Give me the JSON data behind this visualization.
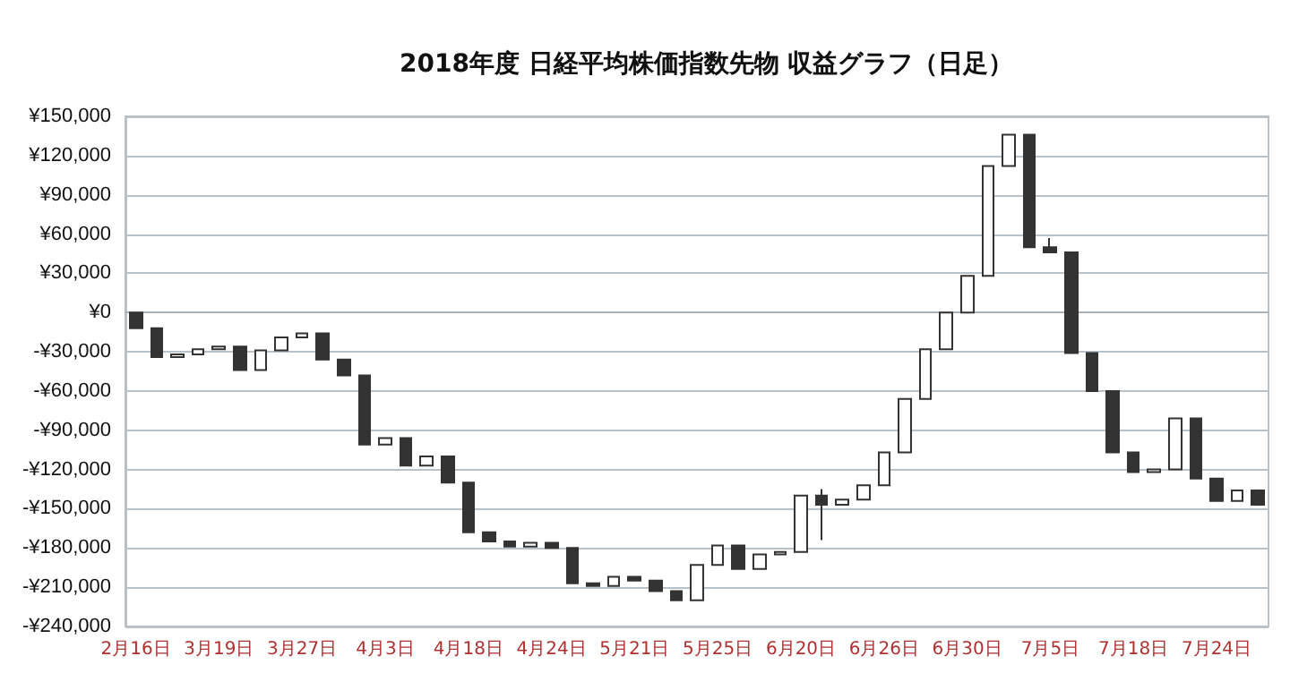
{
  "chart_data": {
    "type": "candlestick",
    "title": "2018年度 日経平均株価指数先物 収益グラフ（日足）",
    "categories": [
      "2月16日",
      null,
      null,
      null,
      "3月19日",
      null,
      null,
      null,
      "3月27日",
      null,
      null,
      null,
      "4月3日",
      null,
      null,
      null,
      "4月18日",
      null,
      null,
      null,
      "4月24日",
      null,
      null,
      null,
      "5月21日",
      null,
      null,
      null,
      "5月25日",
      null,
      null,
      null,
      "6月20日",
      null,
      null,
      null,
      "6月26日",
      null,
      null,
      null,
      "6月30日",
      null,
      null,
      null,
      "7月5日",
      null,
      null,
      null,
      "7月18日",
      null,
      null,
      null,
      "7月24日",
      null,
      null
    ],
    "ohlc": [
      [
        0,
        0,
        -12000,
        -12000
      ],
      [
        -12000,
        -12000,
        -34000,
        -34000
      ],
      [
        -34000,
        -32000,
        -34000,
        -32000
      ],
      [
        -32000,
        -28000,
        -32000,
        -28000
      ],
      [
        -28000,
        -26000,
        -28000,
        -26000
      ],
      [
        -26000,
        -26000,
        -44000,
        -44000
      ],
      [
        -44000,
        -29000,
        -44000,
        -29000
      ],
      [
        -29000,
        -19000,
        -29000,
        -19000
      ],
      [
        -19000,
        -16000,
        -19000,
        -16000
      ],
      [
        -16000,
        -16000,
        -36000,
        -36000
      ],
      [
        -36000,
        -36000,
        -48000,
        -48000
      ],
      [
        -48000,
        -48000,
        -101000,
        -101000
      ],
      [
        -101000,
        -96000,
        -101000,
        -96000
      ],
      [
        -96000,
        -96000,
        -117000,
        -117000
      ],
      [
        -117000,
        -110000,
        -117000,
        -110000
      ],
      [
        -110000,
        -110000,
        -130000,
        -130000
      ],
      [
        -130000,
        -130000,
        -168000,
        -168000
      ],
      [
        -168000,
        -168000,
        -175000,
        -175000
      ],
      [
        -175000,
        -175000,
        -179000,
        -179000
      ],
      [
        -179000,
        -176000,
        -179000,
        -176000
      ],
      [
        -176000,
        -176000,
        -180000,
        -180000
      ],
      [
        -180000,
        -180000,
        -207000,
        -207000
      ],
      [
        -207000,
        -207000,
        -209000,
        -209000
      ],
      [
        -209000,
        -202000,
        -209000,
        -202000
      ],
      [
        -202000,
        -202000,
        -205000,
        -205000
      ],
      [
        -205000,
        -205000,
        -213000,
        -213000
      ],
      [
        -213000,
        -213000,
        -220000,
        -220000
      ],
      [
        -220000,
        -193000,
        -220000,
        -193000
      ],
      [
        -193000,
        -178000,
        -193000,
        -178000
      ],
      [
        -178000,
        -178000,
        -196000,
        -196000
      ],
      [
        -196000,
        -185000,
        -196000,
        -185000
      ],
      [
        -185000,
        -183000,
        -185000,
        -183000
      ],
      [
        -183000,
        -140000,
        -183000,
        -140000
      ],
      [
        -140000,
        -135000,
        -174000,
        -147000
      ],
      [
        -147000,
        -143000,
        -147000,
        -143000
      ],
      [
        -143000,
        -132000,
        -143000,
        -132000
      ],
      [
        -132000,
        -107000,
        -132000,
        -107000
      ],
      [
        -107000,
        -66000,
        -107000,
        -66000
      ],
      [
        -66000,
        -28000,
        -66000,
        -28000
      ],
      [
        -28000,
        0,
        -28000,
        0
      ],
      [
        0,
        28000,
        0,
        28000
      ],
      [
        28000,
        112000,
        28000,
        112000
      ],
      [
        112000,
        136000,
        112000,
        136000
      ],
      [
        136000,
        136000,
        50000,
        50000
      ],
      [
        50000,
        57000,
        46000,
        46000
      ],
      [
        46000,
        46000,
        -31000,
        -31000
      ],
      [
        -31000,
        -31000,
        -60000,
        -60000
      ],
      [
        -60000,
        -60000,
        -107000,
        -107000
      ],
      [
        -107000,
        -107000,
        -122000,
        -122000
      ],
      [
        -122000,
        -120000,
        -122000,
        -120000
      ],
      [
        -120000,
        -81000,
        -120000,
        -81000
      ],
      [
        -81000,
        -81000,
        -127000,
        -127000
      ],
      [
        -127000,
        -127000,
        -144000,
        -144000
      ],
      [
        -144000,
        -136000,
        -144000,
        -136000
      ],
      [
        -136000,
        -136000,
        -147000,
        -147000
      ]
    ],
    "color": "#333333",
    "ylim": [
      -240000,
      150000
    ],
    "yticks": [
      {
        "value": -240000,
        "label": "-¥240,000"
      },
      {
        "value": -210000,
        "label": "-¥210,000"
      },
      {
        "value": -180000,
        "label": "-¥180,000"
      },
      {
        "value": -150000,
        "label": "-¥150,000"
      },
      {
        "value": -120000,
        "label": "-¥120,000"
      },
      {
        "value": -90000,
        "label": "-¥90,000"
      },
      {
        "value": -60000,
        "label": "-¥60,000"
      },
      {
        "value": -30000,
        "label": "-¥30,000"
      },
      {
        "value": 0,
        "label": "¥0"
      },
      {
        "value": 30000,
        "label": "¥30,000"
      },
      {
        "value": 60000,
        "label": "¥60,000"
      },
      {
        "value": 90000,
        "label": "¥90,000"
      },
      {
        "value": 120000,
        "label": "¥120,000"
      },
      {
        "value": 150000,
        "label": "¥150,000"
      }
    ],
    "grid": true
  }
}
